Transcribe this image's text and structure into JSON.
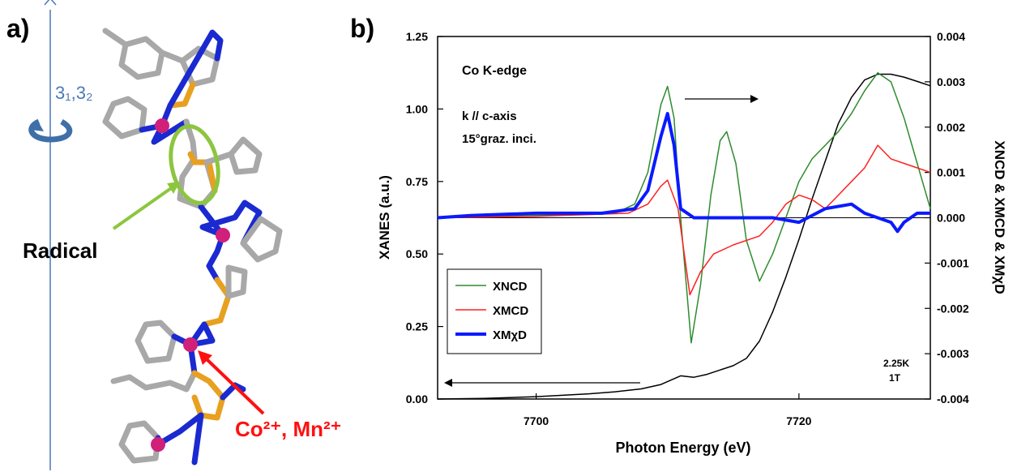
{
  "panel_a": {
    "label": "a)",
    "axis_label": "3₁,3₂",
    "radical_label": "Radical",
    "ion_label": "Co²⁺, Mn²⁺"
  },
  "chart_data": {
    "type": "line",
    "panel_label": "b)",
    "xlabel": "Photon Energy (eV)",
    "ylabel": "XANES (a.u.)",
    "y2label": "XNCD & XMCD & XMχD",
    "annotations": [
      "Co K-edge",
      "k // c-axis",
      "15°graz. inci.",
      "2.25K",
      "1T"
    ],
    "xlim": [
      7692.5,
      7730
    ],
    "xticks": [
      7700,
      7720
    ],
    "ylim": [
      0,
      1.25
    ],
    "yticks": [
      {
        "value": 0,
        "label": "0.00"
      },
      {
        "value": 0.25,
        "label": "0.25"
      },
      {
        "value": 0.5,
        "label": "0.50"
      },
      {
        "value": 0.75,
        "label": "0.75"
      },
      {
        "value": 1,
        "label": "1.00"
      },
      {
        "value": 1.25,
        "label": "1.25"
      }
    ],
    "y2lim": [
      -0.004,
      0.004
    ],
    "y2ticks": [
      0.004,
      0.003,
      0.002,
      0.001,
      {
        "value": 0,
        "label": "0.000"
      },
      -0.001,
      -0.002,
      -0.003,
      -0.004
    ],
    "legend": "lower left",
    "series": [
      {
        "color": "#000000",
        "x": [
          7692.5,
          7696,
          7700,
          7704,
          7706,
          7708,
          7709.5,
          7711,
          7712,
          7713,
          7714,
          7715,
          7716,
          7717,
          7718,
          7719,
          7720,
          7721,
          7722,
          7723,
          7724,
          7725,
          7726,
          7727,
          7728,
          7729,
          7730
        ],
        "values": [
          0.0,
          0.002,
          0.008,
          0.018,
          0.025,
          0.035,
          0.05,
          0.08,
          0.075,
          0.085,
          0.1,
          0.115,
          0.14,
          0.2,
          0.3,
          0.42,
          0.55,
          0.69,
          0.82,
          0.95,
          1.04,
          1.1,
          1.12,
          1.12,
          1.11,
          1.095,
          1.08
        ]
      },
      {
        "name": "XNCD",
        "color": "#2e8b2e",
        "axis": "y2",
        "x": [
          7692.5,
          7700,
          7706,
          7707.5,
          7708.5,
          7709.5,
          7710,
          7710.5,
          7711,
          7711.8,
          7712.5,
          7713.3,
          7714,
          7714.5,
          7715.2,
          7716,
          7717,
          7718,
          7719,
          7720,
          7721,
          7722,
          7723,
          7724,
          7725,
          7726,
          7727,
          7728,
          7729,
          7730
        ],
        "values": [
          0,
          5e-05,
          0.0001,
          0.0003,
          0.001,
          0.0025,
          0.0029,
          0.0022,
          0,
          -0.00276,
          -0.0015,
          0.0005,
          0.0017,
          0.0019,
          0.0012,
          -0.0005,
          -0.0014,
          -0.0008,
          0,
          0.0008,
          0.0013,
          0.0016,
          0.0019,
          0.0023,
          0.0028,
          0.0032,
          0.003,
          0.0022,
          0.0012,
          0.0002
        ]
      },
      {
        "name": "XMCD",
        "color": "#ff2020",
        "axis": "y2",
        "x": [
          7692.5,
          7700,
          7707,
          7708.5,
          7709.5,
          7710,
          7710.8,
          7711.7,
          7712.5,
          7713.5,
          7715,
          7717,
          7718,
          7719,
          7720,
          7721,
          7722,
          7723,
          7724,
          7725,
          7726,
          7727,
          7728,
          7729,
          7730
        ],
        "values": [
          0,
          3e-05,
          0.0001,
          0.0003,
          0.0007,
          0.00083,
          0.0002,
          -0.0017,
          -0.0012,
          -0.0008,
          -0.0006,
          -0.0004,
          -0.0001,
          0.0003,
          0.0005,
          0.0004,
          0.0002,
          0.0005,
          0.0008,
          0.0011,
          0.0016,
          0.0013,
          0.0012,
          0.0011,
          0.001
        ]
      },
      {
        "name": "XMχD",
        "color": "#0a1aff",
        "axis": "y2",
        "x": [
          7692.5,
          7695,
          7700,
          7705,
          7707.5,
          7708.5,
          7709.5,
          7710,
          7710.5,
          7711,
          7712,
          7715,
          7718,
          7720,
          7722,
          7724,
          7725,
          7726,
          7727,
          7727.5,
          7728,
          7729,
          7730
        ],
        "values": [
          0,
          5e-05,
          0.0001,
          0.0001,
          0.0002,
          0.0006,
          0.0018,
          0.0023,
          0.0016,
          0.0002,
          0,
          0,
          0,
          -0.0001,
          0.0002,
          0.0003,
          0.0001,
          0,
          -0.0001,
          -0.0003,
          -0.0001,
          0.0001,
          0.0001
        ]
      }
    ]
  }
}
